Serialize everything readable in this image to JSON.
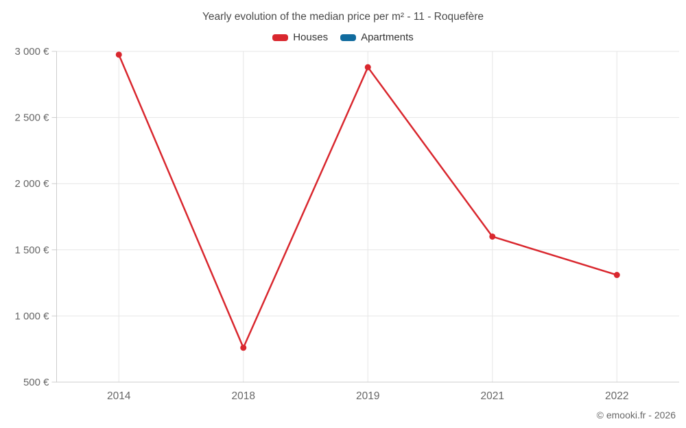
{
  "header": {
    "title": "Yearly evolution of the median price per m² - 11 - Roquefère"
  },
  "legend": {
    "items": [
      {
        "id": "houses",
        "label": "Houses",
        "color": "#d9272e"
      },
      {
        "id": "apartments",
        "label": "Apartments",
        "color": "#106b9e"
      }
    ]
  },
  "footer": {
    "credit": "© emooki.fr - 2026"
  },
  "colors": {
    "grid": "#e6e6e6",
    "axis": "#cccccc",
    "tick_label": "#666666",
    "houses": "#d9272e",
    "apartments": "#106b9e"
  },
  "chart_data": {
    "type": "line",
    "title": "Yearly evolution of the median price per m² - 11 - Roquefère",
    "categories": [
      "2014",
      "2018",
      "2019",
      "2021",
      "2022"
    ],
    "series": [
      {
        "name": "Houses",
        "color": "#d9272e",
        "values": [
          2975,
          760,
          2880,
          1600,
          1310
        ]
      },
      {
        "name": "Apartments",
        "color": "#106b9e",
        "values": []
      }
    ],
    "xlabel": "",
    "ylabel": "",
    "ylim": [
      500,
      3000
    ],
    "ytick_step": 500,
    "ytick_labels": [
      "500 €",
      "1 000 €",
      "1 500 €",
      "2 000 €",
      "2 500 €",
      "3 000 €"
    ],
    "grid": true,
    "legend_position": "top",
    "marker": "circle"
  }
}
